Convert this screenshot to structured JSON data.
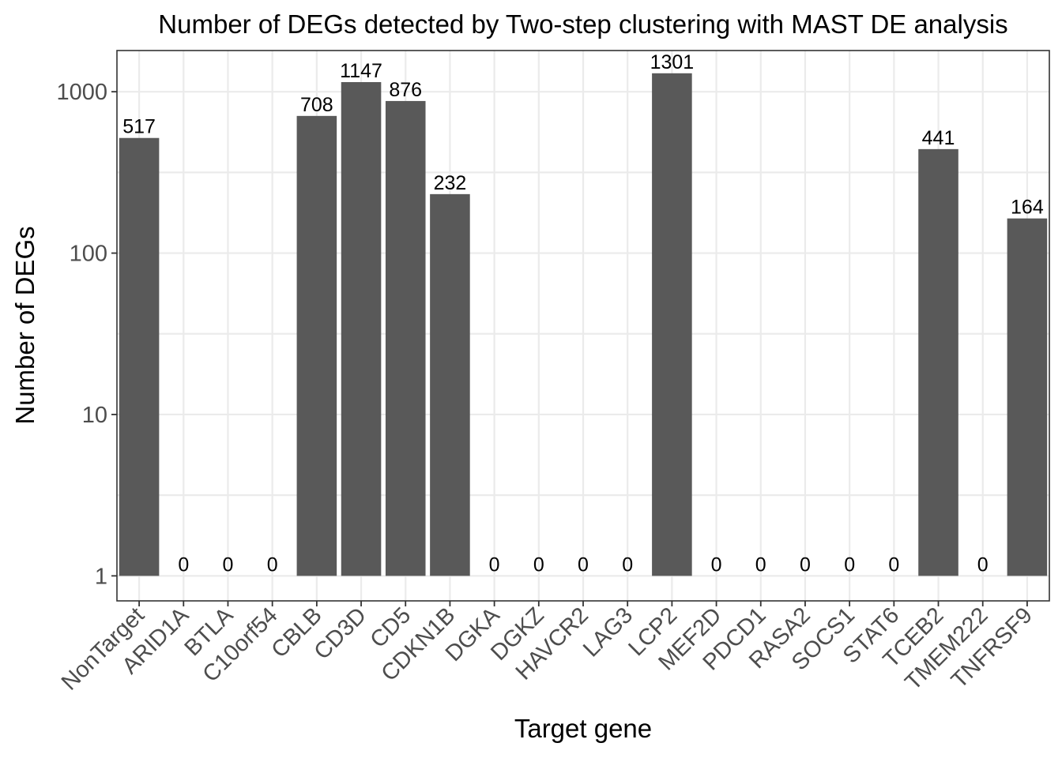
{
  "chart_data": {
    "type": "bar",
    "title": "Number of DEGs detected by Two-step clustering with MAST DE analysis",
    "xlabel": "Target gene",
    "ylabel": "Number of DEGs",
    "y_scale": "log10",
    "ylim": [
      0.7,
      1800
    ],
    "y_ticks": [
      1,
      10,
      100,
      1000
    ],
    "y_tick_labels": [
      "1",
      "10",
      "100",
      "1000"
    ],
    "grid": true,
    "legend": "none",
    "bar_color": "#595959",
    "categories": [
      "NonTarget",
      "ARID1A",
      "BTLA",
      "C10orf54",
      "CBLB",
      "CD3D",
      "CD5",
      "CDKN1B",
      "DGKA",
      "DGKZ",
      "HAVCR2",
      "LAG3",
      "LCP2",
      "MEF2D",
      "PDCD1",
      "RASA2",
      "SOCS1",
      "STAT6",
      "TCEB2",
      "TMEM222",
      "TNFRSF9"
    ],
    "values": [
      517,
      0,
      0,
      0,
      708,
      1147,
      876,
      232,
      0,
      0,
      0,
      0,
      1301,
      0,
      0,
      0,
      0,
      0,
      441,
      0,
      164
    ],
    "data_labels": [
      "517",
      "0",
      "0",
      "0",
      "708",
      "1147",
      "876",
      "232",
      "0",
      "0",
      "0",
      "0",
      "1301",
      "0",
      "0",
      "0",
      "0",
      "0",
      "441",
      "0",
      "164"
    ]
  }
}
